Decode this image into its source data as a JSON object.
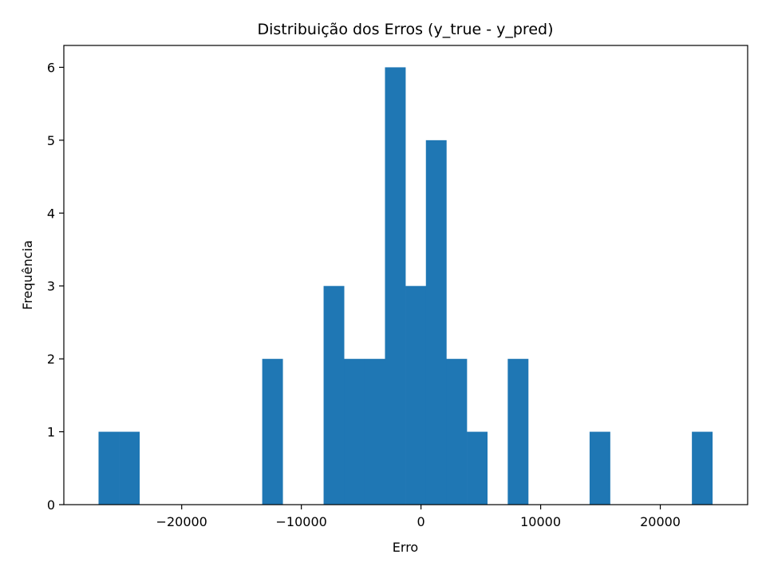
{
  "chart_data": {
    "type": "bar",
    "title": "Distribuição dos Erros (y_true - y_pred)",
    "xlabel": "Erro",
    "ylabel": "Frequência",
    "xlim": [
      -29850,
      27300
    ],
    "ylim": [
      0,
      6.3
    ],
    "xticks": [
      -20000,
      -10000,
      0,
      10000,
      20000
    ],
    "xtick_labels": [
      "−20000",
      "−10000",
      "0",
      "10000",
      "20000"
    ],
    "yticks": [
      0,
      1,
      2,
      3,
      4,
      5,
      6
    ],
    "ytick_labels": [
      "0",
      "1",
      "2",
      "3",
      "4",
      "5",
      "6"
    ],
    "bar_color": "#1f77b4",
    "bin_start": -26950,
    "bin_width": 1710,
    "values": [
      1,
      1,
      0,
      0,
      0,
      0,
      0,
      0,
      2,
      0,
      0,
      3,
      2,
      2,
      6,
      3,
      5,
      2,
      1,
      0,
      2,
      0,
      0,
      0,
      1,
      0,
      0,
      0,
      0,
      1
    ],
    "grid": false,
    "legend": "none"
  }
}
